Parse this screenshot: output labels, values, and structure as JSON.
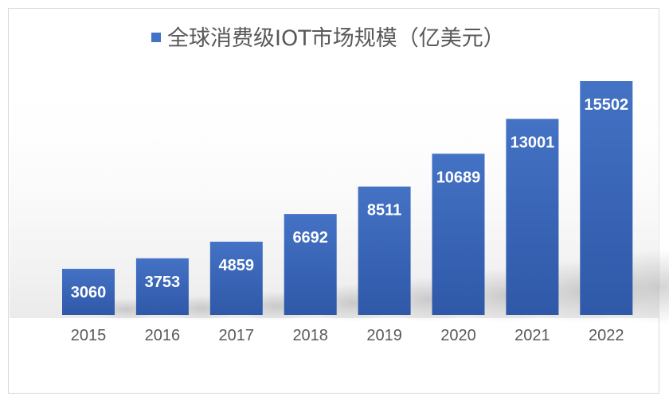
{
  "chart_data": {
    "type": "bar",
    "title": "全球消费级IOT市场规模（亿美元）",
    "categories": [
      "2015",
      "2016",
      "2017",
      "2018",
      "2019",
      "2020",
      "2021",
      "2022"
    ],
    "series": [
      {
        "name": "全球消费级IOT市场规模（亿美元）",
        "values": [
          3060,
          3753,
          4859,
          6692,
          8511,
          10689,
          13001,
          15502
        ]
      }
    ],
    "xlabel": "",
    "ylabel": "",
    "grid": false,
    "legend": "top",
    "data_labels": true,
    "colors": {
      "bar_top": "#4472c4",
      "bar_bottom": "#2f58a8",
      "label": "#ffffff",
      "tick": "#595959",
      "title": "#595959"
    }
  }
}
